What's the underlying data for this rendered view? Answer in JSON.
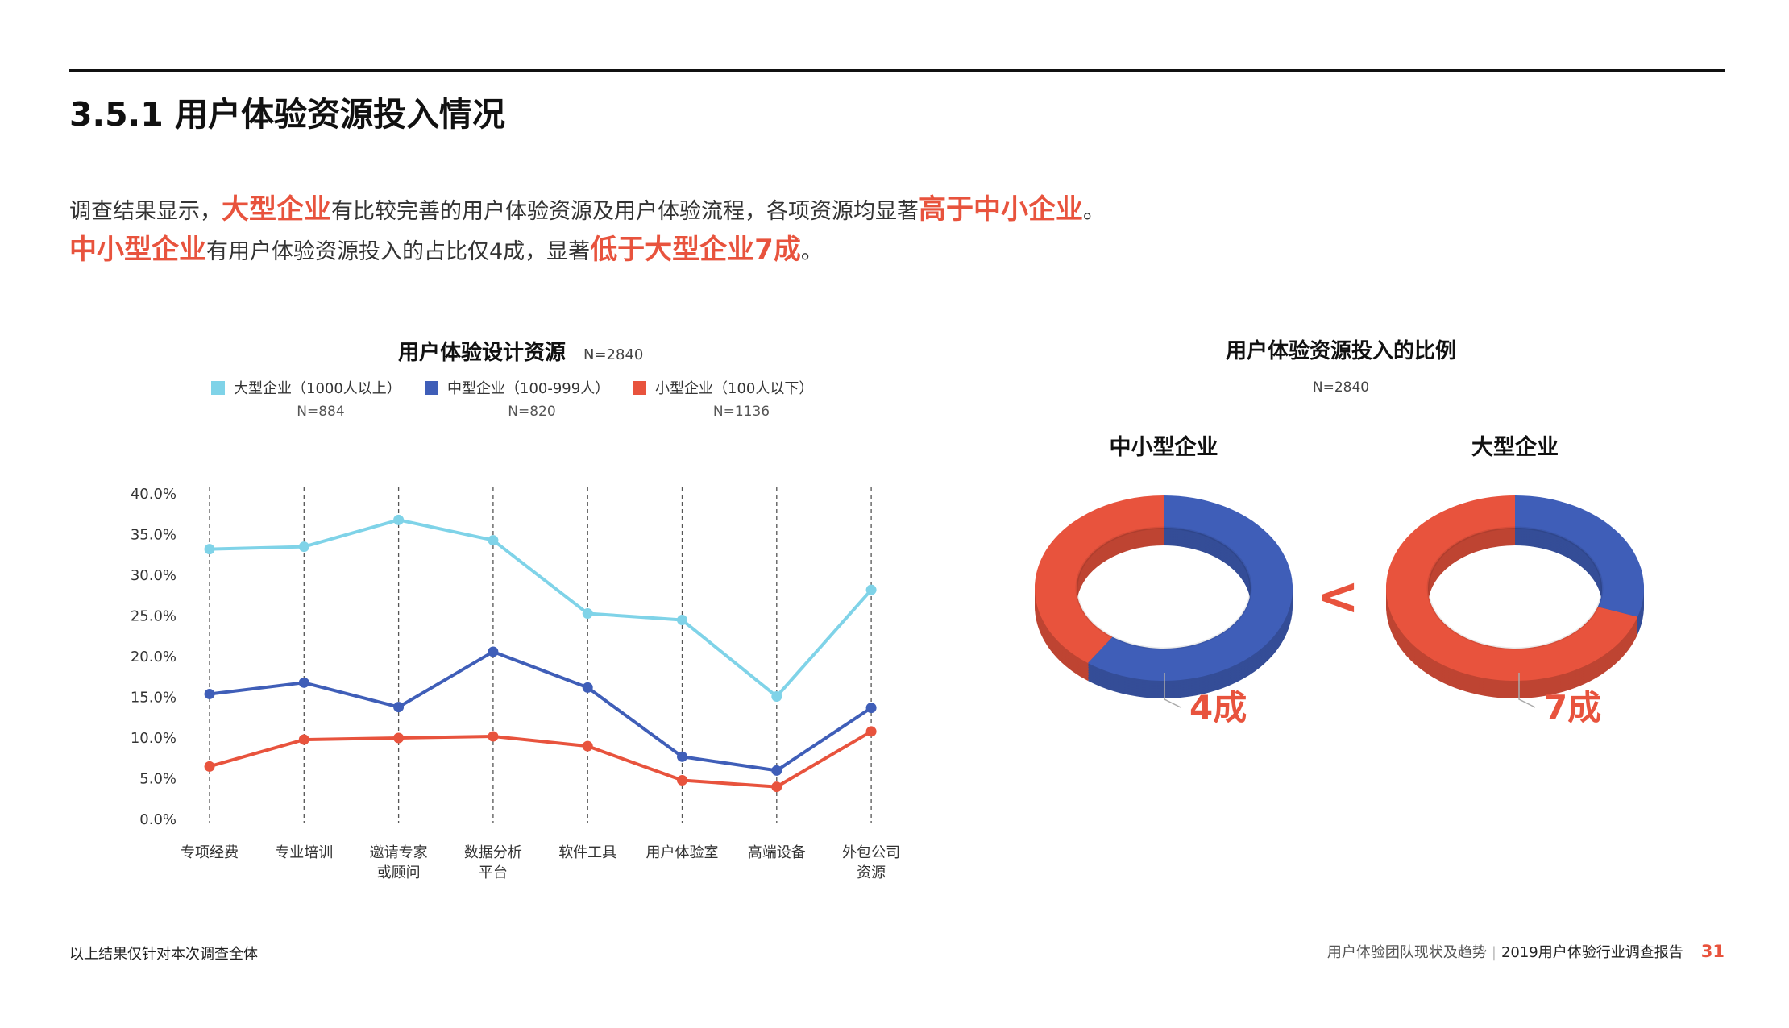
{
  "section": {
    "title": "3.5.1 用户体验资源投入情况"
  },
  "summary": {
    "line1": {
      "p1": "调查结果显示，",
      "h1": "大型企业",
      "p2": "有比较完善的用户体验资源及用户体验流程，各项资源均显著",
      "h2": "高于中小企业",
      "p3": "。"
    },
    "line2": {
      "h1": "中小型企业",
      "p1": "有用户体验资源投入的占比仅4成，显著",
      "h2": "低于大型企业7成",
      "p2": "。"
    }
  },
  "colors": {
    "large": "#7fd3e8",
    "medium": "#3f5eb8",
    "small": "#e8533d",
    "accent": "#e8533d"
  },
  "chart_data": {
    "type": "line",
    "title": "用户体验设计资源",
    "n_label": "N=2840",
    "categories": [
      [
        "专项经费"
      ],
      [
        "专业培训"
      ],
      [
        "邀请专家",
        "或顾问"
      ],
      [
        "数据分析",
        "平台"
      ],
      [
        "软件工具"
      ],
      [
        "用户体验室"
      ],
      [
        "高端设备"
      ],
      [
        "外包公司",
        "资源"
      ]
    ],
    "series": [
      {
        "name": "大型企业（1000人以上）",
        "n": "N=884",
        "color": "#7fd3e8",
        "values": [
          33.2,
          33.5,
          36.8,
          34.3,
          25.3,
          24.5,
          15.1,
          28.2
        ]
      },
      {
        "name": "中型企业（100-999人）",
        "n": "N=820",
        "color": "#3f5eb8",
        "values": [
          15.4,
          16.8,
          13.8,
          20.6,
          16.2,
          7.7,
          6.0,
          13.7
        ]
      },
      {
        "name": "小型企业（100人以下）",
        "n": "N=1136",
        "color": "#e8533d",
        "values": [
          6.5,
          9.8,
          10.0,
          10.2,
          9.0,
          4.8,
          4.0,
          10.8
        ]
      }
    ],
    "y_ticks": [
      "0.0%",
      "5.0%",
      "10.0%",
      "15.0%",
      "20.0%",
      "25.0%",
      "30.0%",
      "35.0%",
      "40.0%"
    ],
    "ylim": [
      0,
      40
    ]
  },
  "donuts": {
    "title": "用户体验资源投入的比例",
    "n_label": "N=2840",
    "compare_symbol": "<",
    "items": [
      {
        "title": "中小型企业",
        "label": "4成",
        "share": 0.4
      },
      {
        "title": "大型企业",
        "label": "7成",
        "share": 0.7
      }
    ]
  },
  "footer": {
    "note": "以上结果仅针对本次调查全体",
    "report_section": "用户体验团队现状及趋势",
    "separator": "|",
    "report_title": "2019用户体验行业调查报告",
    "page": "31"
  }
}
